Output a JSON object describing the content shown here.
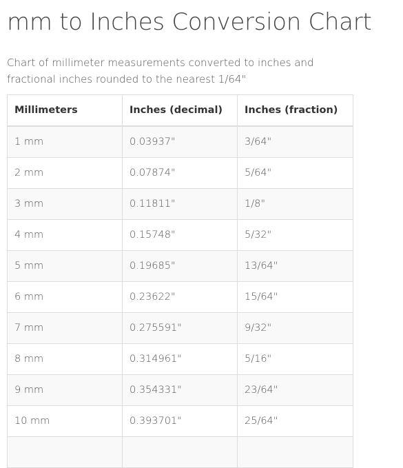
{
  "page": {
    "title": "mm to Inches Conversion Chart",
    "description": "Chart of millimeter measurements converted to inches and fractional inches rounded to the nearest 1/64\""
  },
  "table": {
    "headers": [
      "Millimeters",
      "Inches (decimal)",
      "Inches (fraction)"
    ],
    "rows": [
      [
        "1 mm",
        "0.03937\"",
        "3/64\""
      ],
      [
        "2 mm",
        "0.07874\"",
        "5/64\""
      ],
      [
        "3 mm",
        "0.11811\"",
        "1/8\""
      ],
      [
        "4 mm",
        "0.15748\"",
        "5/32\""
      ],
      [
        "5 mm",
        "0.19685\"",
        "13/64\""
      ],
      [
        "6 mm",
        "0.23622\"",
        "15/64\""
      ],
      [
        "7 mm",
        "0.275591\"",
        "9/32\""
      ],
      [
        "8 mm",
        "0.314961\"",
        "5/16\""
      ],
      [
        "9 mm",
        "0.354331\"",
        "23/64\""
      ],
      [
        "10 mm",
        "0.393701\"",
        "25/64\""
      ]
    ]
  }
}
